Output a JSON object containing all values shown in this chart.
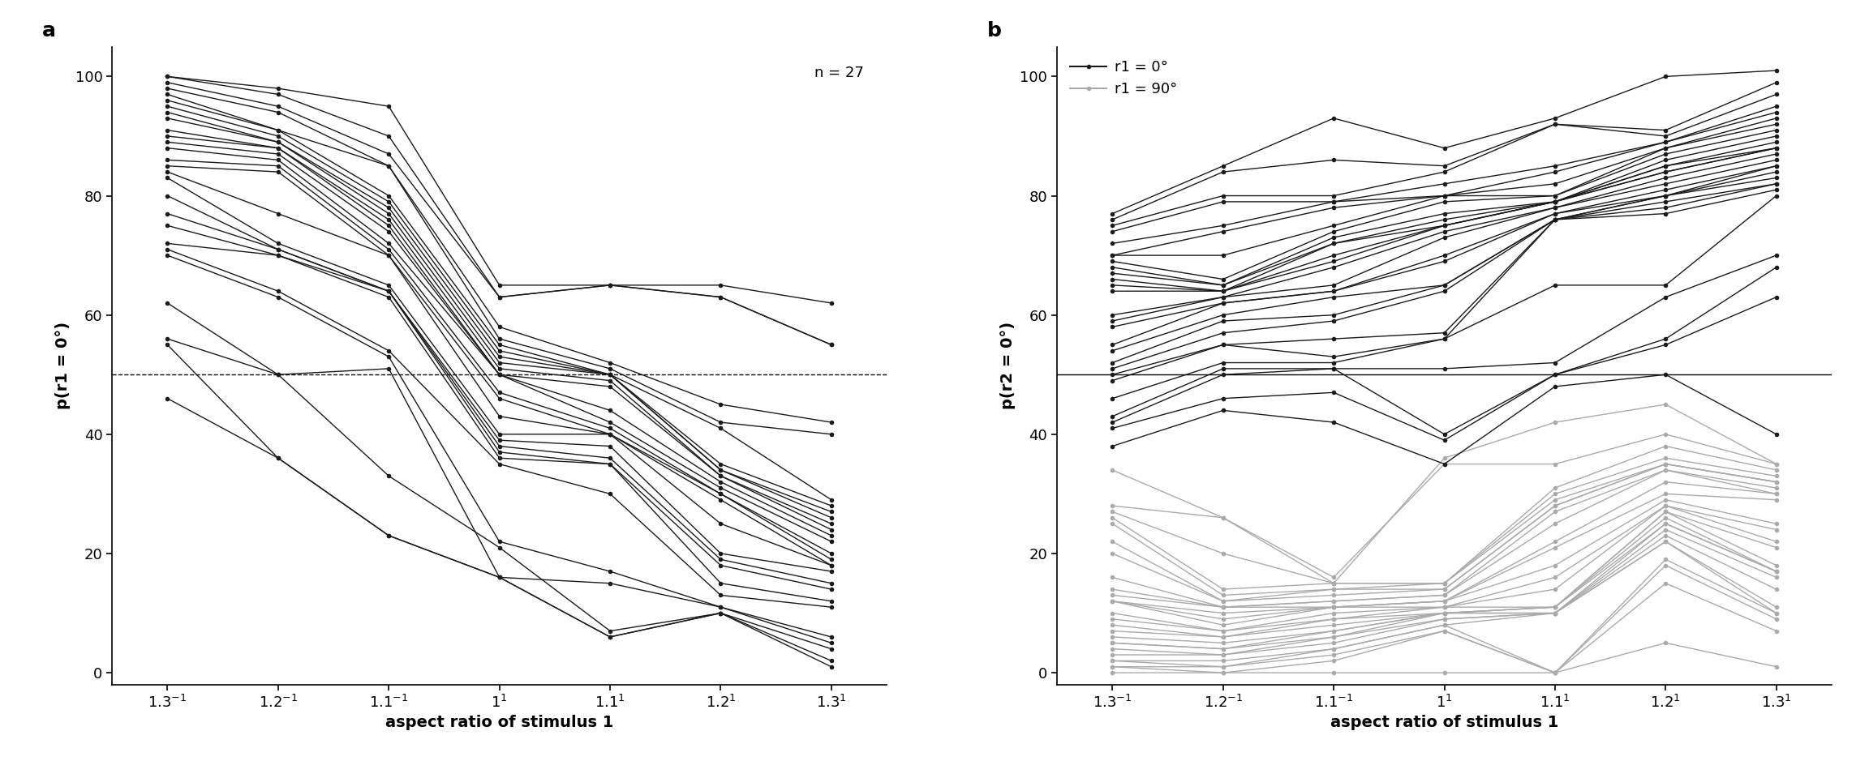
{
  "n_subjects": 27,
  "panel_a_label": "a",
  "panel_b_label": "b",
  "ylabel_a": "p(r1 = 0°)",
  "ylabel_b": "p(r2 = 0°)",
  "xlabel": "aspect ratio of stimulus 1",
  "n_annotation": "n = 27",
  "legend_black": "r1 = 0°",
  "legend_gray": "r1 = 90°",
  "x_tick_labels": [
    "$1.3^{-1}$",
    "$1.2^{-1}$",
    "$1.1^{-1}$",
    "$1^{1}$",
    "$1.1^{1}$",
    "$1.2^{1}$",
    "$1.3^{1}$"
  ],
  "panel_a_data": [
    [
      100,
      98,
      95,
      65,
      65,
      65,
      62
    ],
    [
      100,
      97,
      90,
      63,
      65,
      63,
      55
    ],
    [
      99,
      95,
      87,
      63,
      65,
      63,
      55
    ],
    [
      98,
      94,
      85,
      58,
      52,
      45,
      42
    ],
    [
      97,
      91,
      85,
      56,
      51,
      42,
      40
    ],
    [
      96,
      91,
      80,
      55,
      50,
      41,
      29
    ],
    [
      95,
      90,
      79,
      54,
      50,
      35,
      28
    ],
    [
      94,
      89,
      78,
      53,
      50,
      34,
      27
    ],
    [
      93,
      89,
      77,
      52,
      50,
      34,
      26
    ],
    [
      91,
      88,
      76,
      51,
      49,
      33,
      25
    ],
    [
      90,
      88,
      75,
      50,
      48,
      33,
      24
    ],
    [
      89,
      87,
      74,
      50,
      44,
      32,
      23
    ],
    [
      88,
      86,
      72,
      50,
      42,
      31,
      22
    ],
    [
      86,
      85,
      71,
      47,
      41,
      30,
      20
    ],
    [
      85,
      84,
      70,
      46,
      40,
      30,
      19
    ],
    [
      84,
      77,
      70,
      43,
      40,
      29,
      18
    ],
    [
      83,
      72,
      65,
      40,
      40,
      25,
      18
    ],
    [
      80,
      71,
      64,
      39,
      38,
      20,
      17
    ],
    [
      77,
      71,
      64,
      38,
      36,
      19,
      15
    ],
    [
      75,
      70,
      64,
      37,
      35,
      18,
      14
    ],
    [
      72,
      70,
      63,
      36,
      35,
      15,
      12
    ],
    [
      71,
      64,
      54,
      35,
      30,
      13,
      11
    ],
    [
      70,
      63,
      53,
      22,
      17,
      11,
      6
    ],
    [
      62,
      50,
      51,
      16,
      15,
      11,
      5
    ],
    [
      56,
      50,
      33,
      21,
      7,
      10,
      4
    ],
    [
      55,
      36,
      23,
      16,
      6,
      10,
      2
    ],
    [
      46,
      36,
      23,
      16,
      6,
      10,
      1
    ]
  ],
  "panel_b_black_data": [
    [
      77,
      85,
      93,
      88,
      93,
      100,
      101
    ],
    [
      76,
      84,
      86,
      85,
      92,
      91,
      99
    ],
    [
      75,
      80,
      80,
      84,
      92,
      90,
      97
    ],
    [
      74,
      79,
      79,
      82,
      85,
      89,
      95
    ],
    [
      72,
      75,
      79,
      80,
      84,
      89,
      94
    ],
    [
      70,
      74,
      78,
      80,
      82,
      88,
      93
    ],
    [
      70,
      70,
      75,
      80,
      80,
      88,
      92
    ],
    [
      69,
      66,
      74,
      79,
      80,
      87,
      91
    ],
    [
      68,
      65,
      73,
      77,
      79,
      86,
      90
    ],
    [
      67,
      65,
      72,
      76,
      79,
      85,
      89
    ],
    [
      66,
      64,
      72,
      75,
      79,
      85,
      88
    ],
    [
      65,
      64,
      70,
      75,
      79,
      84,
      88
    ],
    [
      64,
      64,
      69,
      75,
      79,
      84,
      88
    ],
    [
      60,
      63,
      68,
      74,
      78,
      83,
      87
    ],
    [
      59,
      63,
      65,
      73,
      78,
      82,
      86
    ],
    [
      58,
      62,
      64,
      70,
      77,
      81,
      85
    ],
    [
      55,
      62,
      64,
      69,
      77,
      80,
      85
    ],
    [
      54,
      60,
      63,
      65,
      76,
      80,
      84
    ],
    [
      52,
      59,
      60,
      65,
      76,
      80,
      83
    ],
    [
      51,
      57,
      59,
      64,
      76,
      79,
      82
    ],
    [
      50,
      55,
      56,
      57,
      76,
      78,
      82
    ],
    [
      49,
      55,
      53,
      56,
      76,
      77,
      81
    ],
    [
      46,
      52,
      52,
      56,
      65,
      65,
      80
    ],
    [
      43,
      51,
      51,
      51,
      52,
      63,
      70
    ],
    [
      42,
      50,
      51,
      40,
      50,
      56,
      68
    ],
    [
      41,
      46,
      47,
      39,
      50,
      55,
      63
    ],
    [
      38,
      44,
      42,
      35,
      48,
      50,
      40
    ]
  ],
  "panel_b_gray_data": [
    [
      34,
      26,
      15,
      36,
      42,
      45,
      35
    ],
    [
      28,
      26,
      16,
      35,
      35,
      40,
      35
    ],
    [
      27,
      20,
      15,
      15,
      31,
      38,
      34
    ],
    [
      26,
      14,
      15,
      15,
      30,
      36,
      33
    ],
    [
      25,
      13,
      14,
      15,
      29,
      35,
      32
    ],
    [
      22,
      12,
      14,
      14,
      28,
      35,
      32
    ],
    [
      20,
      12,
      13,
      14,
      28,
      35,
      32
    ],
    [
      16,
      11,
      12,
      13,
      27,
      34,
      31
    ],
    [
      14,
      11,
      12,
      13,
      25,
      34,
      30
    ],
    [
      13,
      11,
      11,
      12,
      22,
      32,
      30
    ],
    [
      12,
      10,
      11,
      12,
      21,
      30,
      29
    ],
    [
      12,
      9,
      11,
      12,
      18,
      29,
      25
    ],
    [
      12,
      8,
      11,
      11,
      16,
      28,
      24
    ],
    [
      10,
      7,
      10,
      11,
      14,
      28,
      22
    ],
    [
      9,
      7,
      9,
      11,
      11,
      27,
      21
    ],
    [
      8,
      6,
      9,
      10,
      11,
      27,
      18
    ],
    [
      7,
      6,
      8,
      10,
      11,
      26,
      17
    ],
    [
      6,
      5,
      7,
      10,
      11,
      25,
      17
    ],
    [
      5,
      4,
      7,
      10,
      10,
      25,
      17
    ],
    [
      5,
      4,
      6,
      10,
      10,
      24,
      16
    ],
    [
      4,
      3,
      6,
      9,
      10,
      23,
      14
    ],
    [
      3,
      3,
      5,
      9,
      10,
      22,
      11
    ],
    [
      2,
      2,
      4,
      8,
      10,
      22,
      10
    ],
    [
      2,
      1,
      4,
      8,
      0,
      19,
      10
    ],
    [
      1,
      1,
      3,
      7,
      0,
      18,
      9
    ],
    [
      1,
      0,
      2,
      7,
      0,
      15,
      7
    ],
    [
      0,
      0,
      0,
      0,
      0,
      5,
      1
    ]
  ],
  "line_color_black": "#1a1a1a",
  "line_color_gray": "#aaaaaa",
  "marker_size": 4,
  "line_width": 1.0,
  "background_color": "#ffffff",
  "ylim": [
    -2,
    105
  ],
  "yticks": [
    0,
    20,
    40,
    60,
    80,
    100
  ]
}
